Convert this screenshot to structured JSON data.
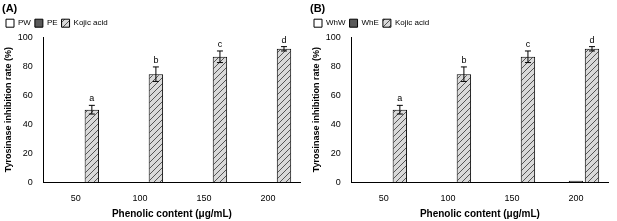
{
  "chart_data": [
    {
      "type": "bar",
      "title": "(A)",
      "x_label": "Phenolic content (μg/mL)",
      "y_label": "Tyrosinase inhibition rate (%)",
      "categories": [
        "50",
        "100",
        "150",
        "200"
      ],
      "series": [
        {
          "name": "PW",
          "color": "#ffffff",
          "values": [
            0,
            0,
            0,
            0
          ]
        },
        {
          "name": "PE",
          "color": "#595959",
          "values": [
            0,
            0,
            0,
            0
          ]
        },
        {
          "name": "Kojic acid",
          "color": "#d9d9d9",
          "values": [
            50,
            74.5,
            86.5,
            92
          ],
          "error": [
            3,
            5,
            4,
            1.5
          ],
          "annotations": [
            "a",
            "b",
            "c",
            "d"
          ]
        }
      ],
      "ylim": [
        0,
        100
      ],
      "yticks": [
        0,
        20,
        40,
        60,
        80,
        100
      ],
      "grid": false,
      "legend": "top-left"
    },
    {
      "type": "bar",
      "title": "(B)",
      "x_label": "Phenolic content (μg/mL)",
      "y_label": "Tyrosinase inhibition rate (%)",
      "categories": [
        "50",
        "100",
        "150",
        "200"
      ],
      "series": [
        {
          "name": "WhW",
          "color": "#ffffff",
          "values": [
            0,
            0,
            0,
            0
          ]
        },
        {
          "name": "WhE",
          "color": "#595959",
          "values": [
            0,
            0,
            0,
            1
          ]
        },
        {
          "name": "Kojic acid",
          "color": "#d9d9d9",
          "values": [
            50,
            74.5,
            86.5,
            92
          ],
          "error": [
            3,
            5,
            4,
            1.5
          ],
          "annotations": [
            "a",
            "b",
            "c",
            "d"
          ]
        }
      ],
      "ylim": [
        0,
        100
      ],
      "yticks": [
        0,
        20,
        40,
        60,
        80,
        100
      ],
      "grid": false,
      "legend": "top-left"
    }
  ]
}
